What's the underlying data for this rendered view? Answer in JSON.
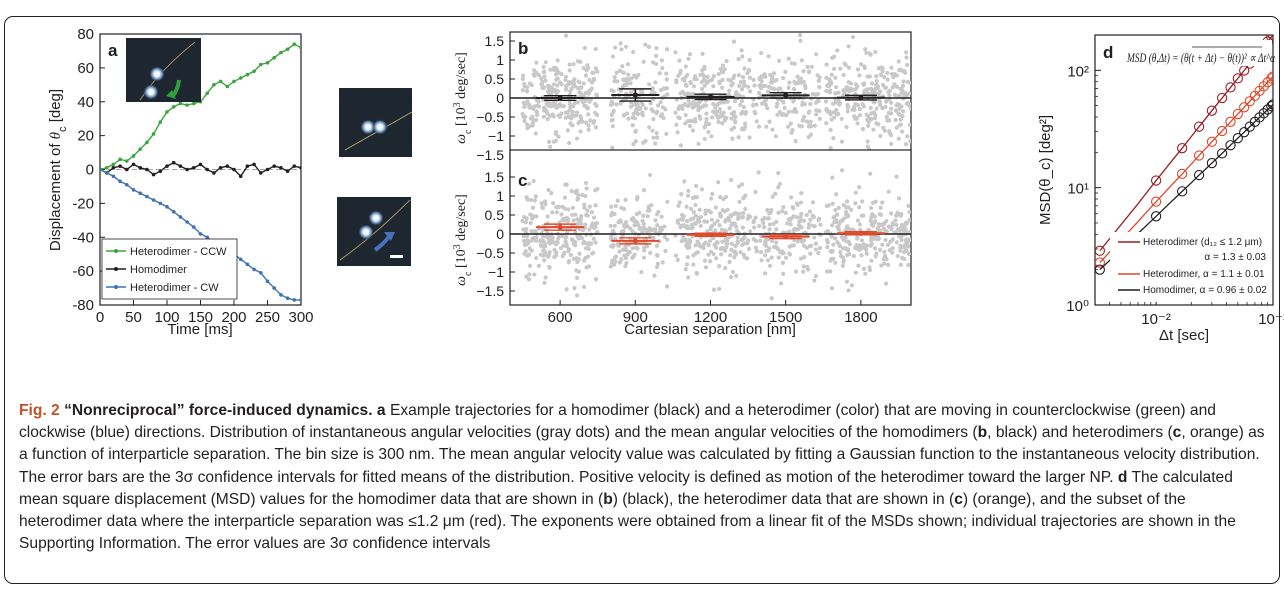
{
  "figure": {
    "panel_labels": {
      "a": "a",
      "b": "b",
      "c": "c",
      "d": "d"
    },
    "colors": {
      "ccw": "#3ca43c",
      "cw": "#3f72b0",
      "homo": "#231f20",
      "hetero": "#e0482a",
      "hetero_small": "#9a1f24",
      "scatter": "#c8c8c8",
      "accent": "#c4532a"
    }
  },
  "chart_data": [
    {
      "id": "a",
      "type": "line",
      "xlabel": "Time [ms]",
      "ylabel": "Displacement of θ_c [deg]",
      "xlim": [
        0,
        300
      ],
      "ylim": [
        -80,
        80
      ],
      "xticks": [
        0,
        50,
        100,
        150,
        200,
        250,
        300
      ],
      "yticks": [
        -80,
        -60,
        -40,
        -20,
        0,
        20,
        40,
        60,
        80
      ],
      "legend": "bottom-left",
      "series": [
        {
          "name": "Heterodimer - CCW",
          "color": "#3ca43c",
          "x": [
            0,
            10,
            20,
            30,
            40,
            50,
            60,
            70,
            80,
            90,
            100,
            110,
            120,
            130,
            140,
            150,
            160,
            170,
            180,
            190,
            200,
            210,
            220,
            230,
            240,
            250,
            260,
            270,
            280,
            290,
            300
          ],
          "y": [
            0,
            1,
            3,
            6,
            5,
            8,
            12,
            16,
            21,
            28,
            34,
            37,
            39,
            38,
            39,
            40,
            45,
            50,
            52,
            49,
            52,
            54,
            56,
            58,
            62,
            63,
            66,
            69,
            71,
            74,
            72
          ]
        },
        {
          "name": "Homodimer",
          "color": "#231f20",
          "x": [
            0,
            10,
            20,
            30,
            40,
            50,
            60,
            70,
            80,
            90,
            100,
            110,
            120,
            130,
            140,
            150,
            160,
            170,
            180,
            190,
            200,
            210,
            220,
            230,
            240,
            250,
            260,
            270,
            280,
            290,
            300
          ],
          "y": [
            0,
            -2,
            1,
            2,
            0,
            3,
            1,
            0,
            -3,
            -1,
            2,
            4,
            2,
            0,
            1,
            3,
            0,
            -2,
            1,
            2,
            0,
            -4,
            2,
            3,
            -2,
            0,
            2,
            1,
            -1,
            2,
            1
          ]
        },
        {
          "name": "Heterodimer - CW",
          "color": "#3f72b0",
          "x": [
            0,
            10,
            20,
            30,
            40,
            50,
            60,
            70,
            80,
            90,
            100,
            110,
            120,
            130,
            140,
            150,
            160,
            170,
            180,
            190,
            200,
            210,
            220,
            230,
            240,
            250,
            260,
            270,
            280,
            290,
            300
          ],
          "y": [
            0,
            -2,
            -4,
            -7,
            -9,
            -12,
            -14,
            -16,
            -18,
            -20,
            -22,
            -25,
            -28,
            -31,
            -34,
            -38,
            -40,
            -43,
            -42,
            -46,
            -50,
            -53,
            -56,
            -59,
            -61,
            -66,
            -70,
            -74,
            -76,
            -77,
            -77
          ]
        }
      ],
      "insets": [
        "microscope-image-ccw",
        "microscope-image-homodimer",
        "microscope-image-cw"
      ]
    },
    {
      "id": "b",
      "type": "scatter",
      "xlabel": "",
      "ylabel": "ω_c [10³ deg/sec]",
      "xlim": [
        400,
        2000
      ],
      "ylim": [
        -1.75,
        1.75
      ],
      "xticks": [
        600,
        900,
        1200,
        1500,
        1800
      ],
      "yticks": [
        -1.5,
        -1,
        -0.5,
        0,
        0.5,
        1,
        1.5
      ],
      "ytick_labels": [
        "−1.5",
        "−1",
        "−0.5",
        "0",
        "0.5",
        "1",
        "1.5"
      ],
      "mean_series": {
        "color": "#231f20",
        "x": [
          600,
          900,
          1200,
          1500,
          1800
        ],
        "y": [
          0.0,
          0.08,
          0.03,
          0.07,
          0.01
        ],
        "err": [
          0.06,
          0.16,
          0.07,
          0.07,
          0.06
        ]
      }
    },
    {
      "id": "c",
      "type": "scatter",
      "xlabel": "Cartesian separation [nm]",
      "ylabel": "ω_c [10³ deg/sec]",
      "xlim": [
        400,
        2000
      ],
      "ylim": [
        -1.75,
        1.75
      ],
      "xticks": [
        600,
        900,
        1200,
        1500,
        1800
      ],
      "yticks": [
        -1.5,
        -1,
        -0.5,
        0,
        0.5,
        1,
        1.5
      ],
      "ytick_labels": [
        "−1.5",
        "−1",
        "−0.5",
        "0",
        "0.5",
        "1",
        "1.5"
      ],
      "mean_series": {
        "color": "#e0482a",
        "x": [
          600,
          900,
          1200,
          1500,
          1800
        ],
        "y": [
          0.18,
          -0.18,
          -0.02,
          -0.07,
          0.02
        ],
        "err": [
          0.08,
          0.08,
          0.04,
          0.05,
          0.04
        ]
      }
    },
    {
      "id": "d",
      "type": "line",
      "xlabel": "Δt [sec]",
      "ylabel": "MSD(θ_c) [deg²]",
      "xscale": "log",
      "yscale": "log",
      "xlim": [
        0.003,
        0.1
      ],
      "ylim": [
        1,
        200
      ],
      "xticks": [
        0.01,
        0.1
      ],
      "xtick_labels": [
        "10⁻²",
        "10⁻¹"
      ],
      "yticks": [
        1,
        10,
        100
      ],
      "ytick_labels": [
        "10⁰",
        "10¹",
        "10²"
      ],
      "annotation": "MSD (θ,Δt) = (θ(t + Δt) − θ(t))² ∝ Δt^α",
      "legend": "bottom-right",
      "series": [
        {
          "name": "Heterodimer (d₁₂ ≤ 1.2 μm)",
          "alpha_label": "α = 1.3 ± 0.03",
          "color": "#9a1f24",
          "x": [
            0.0033,
            0.0067,
            0.01,
            0.0133,
            0.0167,
            0.02,
            0.0233,
            0.0267,
            0.03,
            0.0333,
            0.0367,
            0.04,
            0.0433,
            0.0467,
            0.05,
            0.0533,
            0.0567,
            0.06,
            0.0633,
            0.0667,
            0.07,
            0.0733,
            0.0767,
            0.08,
            0.0833,
            0.0867,
            0.09,
            0.0933,
            0.0967,
            0.1
          ],
          "y": [
            2.9,
            6.9,
            11.5,
            16.4,
            21.7,
            27.3,
            33.1,
            39.1,
            45.3,
            51.6,
            58.1,
            64.8,
            71.5,
            78.4,
            85.4,
            92.5,
            99.7,
            107,
            114,
            122,
            129,
            137,
            145,
            152,
            160,
            168,
            176,
            184,
            192,
            200
          ]
        },
        {
          "name": "Heterodimer",
          "alpha_label": "α = 1.1 ± 0.01",
          "color": "#e0482a",
          "x": [
            0.0033,
            0.0067,
            0.01,
            0.0133,
            0.0167,
            0.02,
            0.0233,
            0.0267,
            0.03,
            0.0333,
            0.0367,
            0.04,
            0.0433,
            0.0467,
            0.05,
            0.0533,
            0.0567,
            0.06,
            0.0633,
            0.0667,
            0.07,
            0.0733,
            0.0767,
            0.08,
            0.0833,
            0.0867,
            0.09,
            0.0933,
            0.0967,
            0.1
          ],
          "y": [
            2.3,
            4.9,
            7.6,
            10.3,
            13.1,
            15.9,
            18.8,
            21.7,
            24.6,
            27.5,
            30.4,
            33.4,
            36.4,
            39.4,
            42.4,
            45.4,
            48.4,
            51.5,
            54.5,
            57.6,
            60.6,
            63.7,
            66.8,
            69.9,
            73.0,
            76.1,
            79.2,
            82.3,
            85.4,
            88.6
          ]
        },
        {
          "name": "Homodimer",
          "alpha_label": "α = 0.96 ± 0.02",
          "color": "#231f20",
          "x": [
            0.0033,
            0.0067,
            0.01,
            0.0133,
            0.0167,
            0.02,
            0.0233,
            0.0267,
            0.03,
            0.0333,
            0.0367,
            0.04,
            0.0433,
            0.0467,
            0.05,
            0.0533,
            0.0567,
            0.06,
            0.0633,
            0.0667,
            0.07,
            0.0733,
            0.0767,
            0.08,
            0.0833,
            0.0867,
            0.09,
            0.0933,
            0.0967,
            0.1
          ],
          "y": [
            2.0,
            3.9,
            5.7,
            7.5,
            9.3,
            11.0,
            12.8,
            14.5,
            16.2,
            17.9,
            19.6,
            21.3,
            23.0,
            24.7,
            26.4,
            28.1,
            29.7,
            31.4,
            33.1,
            34.7,
            36.4,
            38.0,
            39.7,
            41.3,
            43.0,
            44.6,
            46.3,
            47.9,
            49.5,
            51.2
          ]
        }
      ]
    }
  ],
  "legend_a": {
    "items": [
      "Heterodimer - CCW",
      "Homodimer",
      "Heterodimer - CW"
    ]
  },
  "legend_d": {
    "items": [
      {
        "label": "Heterodimer (d₁₂ ≤ 1.2 μm)",
        "alpha": "α = 1.3 ± 0.03"
      },
      {
        "label": "Heterodimer, α = 1.1 ± 0.01",
        "alpha": ""
      },
      {
        "label": "Homodimer, α = 0.96 ± 0.02",
        "alpha": ""
      }
    ]
  },
  "caption": {
    "label": "Fig. 2",
    "title": "“Nonreciprocal” force-induced dynamics.",
    "text_a": "Example trajectories for a homodimer (black) and a heterodimer (color) that are moving in counterclockwise (green) and clockwise (blue) directions. Distribution of instantaneous angular velocities (gray dots) and the mean angular velocities of the homodimers (",
    "text_b1": ", black) and heterodimers (",
    "text_c1": ", orange) as a function of interparticle separation. The bin size is 300 nm. The mean angular velocity value was calculated by fitting a Gaussian function to the instantaneous velocity distribution. The error bars are the 3σ confidence intervals for fitted means of the distribution. Positive velocity is defined as motion of the heterodimer toward the larger NP.",
    "text_d": "The calculated mean square displacement (MSD) values for the homodimer data that are shown in (",
    "text_d2": ") (black), the heterodimer data that are shown in (",
    "text_d3": ") (orange), and the subset of the heterodimer data where the interparticle separation was ≤1.2 μm (red). The exponents were obtained from a linear fit of the MSDs shown; individual trajectories are shown in the Supporting Information. The error values are 3σ confidence intervals"
  }
}
